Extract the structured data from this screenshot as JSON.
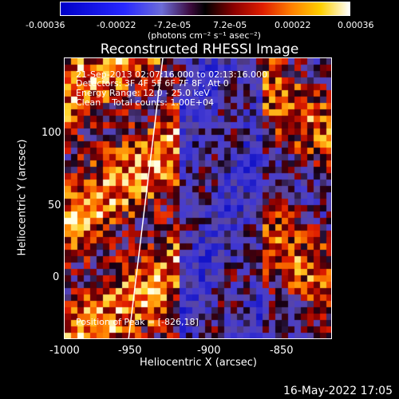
{
  "colorbar": {
    "tick_labels": [
      "-0.00036",
      "-0.00022",
      "-7.2e-05",
      "7.2e-05",
      "0.00022",
      "0.00036"
    ],
    "units": "(photons cm⁻² s⁻¹ asec⁻²)"
  },
  "title": "Reconstructed RHESSI Image",
  "info": {
    "line1": "21-Sep-2013 02:07:16.000 to 02:13:16.000",
    "line2": "Detectors: 3F 4F 5F 6F 7F 8F, Att 0",
    "line3": "Energy Range: 12.0 - 25.0 keV",
    "line4": "Clean    Total counts: 1.00E+04",
    "peak": "Position of Peak = [-826,18]"
  },
  "axes": {
    "xlabel": "Heliocentric X (arcsec)",
    "ylabel": "Heliocentric Y (arcsec)",
    "xticks": [
      "-1000",
      "-950",
      "-900",
      "-850"
    ],
    "yticks": [
      "100",
      "50",
      "0"
    ]
  },
  "footer": {
    "date": "16-May-2022 17:05"
  }
}
